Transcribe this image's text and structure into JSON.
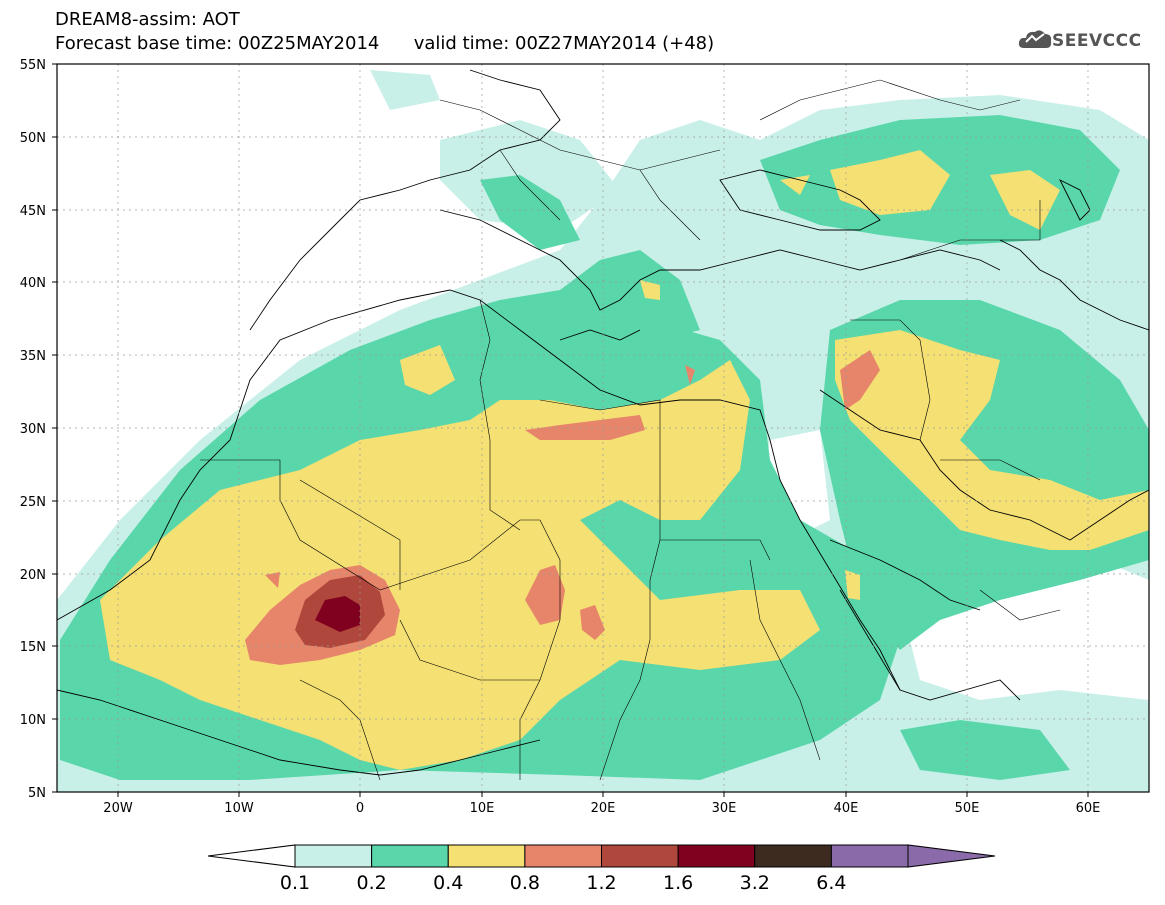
{
  "header": {
    "title": "DREAM8-assim: AOT",
    "base_time_label": "Forecast base time: 00Z25MAY2014",
    "valid_time_label": "valid time: 00Z27MAY2014 (+48)"
  },
  "logo": {
    "text": "SEEVCCC",
    "icon": "cloud-icon"
  },
  "map": {
    "lat_labels": [
      "55N",
      "50N",
      "45N",
      "40N",
      "35N",
      "30N",
      "25N",
      "20N",
      "15N",
      "10N",
      "5N"
    ],
    "lon_labels": [
      "20W",
      "10W",
      "0",
      "10E",
      "20E",
      "30E",
      "40E",
      "50E",
      "60E"
    ],
    "lon_range": [
      -25,
      65
    ],
    "lat_range": [
      5,
      55
    ],
    "grid": true
  },
  "colorbar": {
    "tick_labels": [
      "0.1",
      "0.2",
      "0.4",
      "0.8",
      "1.2",
      "1.6",
      "3.2",
      "6.4"
    ],
    "colors": [
      "#ffffff",
      "#c8f0e8",
      "#5ad7aa",
      "#f5e073",
      "#e6856a",
      "#b0473d",
      "#800020",
      "#3d2b1f",
      "#8a6aa8"
    ]
  }
}
